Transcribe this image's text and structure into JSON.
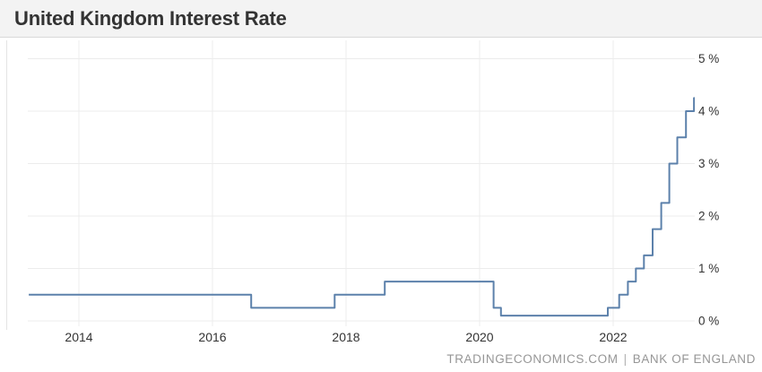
{
  "header": {
    "title": "United Kingdom Interest Rate"
  },
  "footer": {
    "source_site": "TRADINGECONOMICS.COM",
    "separator": "|",
    "source_provider": "BANK OF ENGLAND"
  },
  "colors": {
    "line": "#5c81ab",
    "grid": "#ececec",
    "plot_border": "#e4e4e4",
    "axis_text": "#333333",
    "header_bg": "#f3f3f3",
    "header_border": "#d9d9d9",
    "title_text": "#333333",
    "footer_text": "#969696",
    "background": "#ffffff"
  },
  "chart_data": {
    "type": "line",
    "line_style": "step-after",
    "title": "United Kingdom Interest Rate",
    "xlabel": "",
    "ylabel": "",
    "grid": true,
    "legend_position": "none",
    "xlim": [
      2013.25,
      2023.25
    ],
    "ylim": [
      0,
      5
    ],
    "x_ticks": [
      2014,
      2016,
      2018,
      2020,
      2022
    ],
    "x_tick_labels": [
      "2014",
      "2016",
      "2018",
      "2020",
      "2022"
    ],
    "y_ticks": [
      0,
      1,
      2,
      3,
      4,
      5
    ],
    "y_tick_labels": [
      "0 %",
      "1 %",
      "2 %",
      "3 %",
      "4 %",
      "5 %"
    ],
    "series": [
      {
        "name": "United Kingdom Interest Rate (%)",
        "points": [
          {
            "x": 2013.25,
            "y": 0.5
          },
          {
            "x": 2016.58,
            "y": 0.25
          },
          {
            "x": 2017.83,
            "y": 0.5
          },
          {
            "x": 2018.58,
            "y": 0.75
          },
          {
            "x": 2020.21,
            "y": 0.25
          },
          {
            "x": 2020.32,
            "y": 0.1
          },
          {
            "x": 2021.92,
            "y": 0.25
          },
          {
            "x": 2022.09,
            "y": 0.5
          },
          {
            "x": 2022.22,
            "y": 0.75
          },
          {
            "x": 2022.34,
            "y": 1.0
          },
          {
            "x": 2022.46,
            "y": 1.25
          },
          {
            "x": 2022.59,
            "y": 1.75
          },
          {
            "x": 2022.72,
            "y": 2.25
          },
          {
            "x": 2022.84,
            "y": 3.0
          },
          {
            "x": 2022.96,
            "y": 3.5
          },
          {
            "x": 2023.09,
            "y": 4.0
          },
          {
            "x": 2023.21,
            "y": 4.25
          },
          {
            "x": 2023.23,
            "y": 4.25
          }
        ]
      }
    ]
  }
}
